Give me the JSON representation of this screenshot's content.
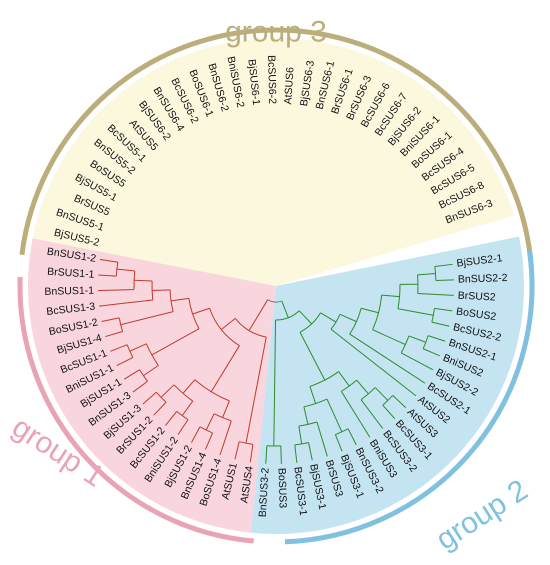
{
  "groups": [
    {
      "id": "g3",
      "label": "group 3",
      "color": "#BBAE7A",
      "sector_fill": "#FCF8DE",
      "branch_color": "#E0B43A"
    },
    {
      "id": "g1",
      "label": "group 1",
      "color": "#E8A4B4",
      "sector_fill": "#F9D5DD",
      "branch_color": "#C0392B"
    },
    {
      "id": "g2",
      "label": "group 2",
      "color": "#7FC1DE",
      "sector_fill": "#C5E4F2",
      "branch_color": "#2E8B2E"
    }
  ],
  "leaves": [
    {
      "label": "BjSUS2-1",
      "group": "g2"
    },
    {
      "label": "BnSUS2-2",
      "group": "g2"
    },
    {
      "label": "BrSUS2",
      "group": "g2"
    },
    {
      "label": "BoSUS2",
      "group": "g2"
    },
    {
      "label": "BcSUS2-2",
      "group": "g2"
    },
    {
      "label": "BnSUS2-1",
      "group": "g2"
    },
    {
      "label": "BniSUS2",
      "group": "g2"
    },
    {
      "label": "BjSUS2-2",
      "group": "g2"
    },
    {
      "label": "BcSUS2-1",
      "group": "g2"
    },
    {
      "label": "AtSUS2",
      "group": "g2"
    },
    {
      "label": "AtSUS3",
      "group": "g2"
    },
    {
      "label": "BcSUS3-1",
      "group": "g2"
    },
    {
      "label": "BcSUS3-2",
      "group": "g2"
    },
    {
      "label": "BniSUS3",
      "group": "g2"
    },
    {
      "label": "BnSUS3-2",
      "group": "g2"
    },
    {
      "label": "BjSUS3-1",
      "group": "g2"
    },
    {
      "label": "BrSUS3",
      "group": "g2"
    },
    {
      "label": "BjSUS3-1",
      "group": "g2"
    },
    {
      "label": "BcSUS3-1",
      "group": "g2"
    },
    {
      "label": "BoSUS3",
      "group": "g2"
    },
    {
      "label": "BnSUS3-2",
      "group": "g2"
    },
    {
      "label": "AtSUS4",
      "group": "g1"
    },
    {
      "label": "AtSUS1",
      "group": "g1"
    },
    {
      "label": "BoSUS1-4",
      "group": "g1"
    },
    {
      "label": "BnSUS1-4",
      "group": "g1"
    },
    {
      "label": "BjSUS1-2",
      "group": "g1"
    },
    {
      "label": "BniSUS1-2",
      "group": "g1"
    },
    {
      "label": "BcSUS1-2",
      "group": "g1"
    },
    {
      "label": "BrSUS1-2",
      "group": "g1"
    },
    {
      "label": "BjSUS1-3",
      "group": "g1"
    },
    {
      "label": "BnSUS1-3",
      "group": "g1"
    },
    {
      "label": "BjSUS1-1",
      "group": "g1"
    },
    {
      "label": "BniSUS1-1",
      "group": "g1"
    },
    {
      "label": "BcSUS1-1",
      "group": "g1"
    },
    {
      "label": "BjSUS1-4",
      "group": "g1"
    },
    {
      "label": "BoSUS1-2",
      "group": "g1"
    },
    {
      "label": "BcSUS1-3",
      "group": "g1"
    },
    {
      "label": "BnSUS1-1",
      "group": "g1"
    },
    {
      "label": "BrSUS1-1",
      "group": "g1"
    },
    {
      "label": "BnSUS1-2",
      "group": "g1"
    },
    {
      "label": "BjSUS5-2",
      "group": "g3"
    },
    {
      "label": "BnSUS5-1",
      "group": "g3"
    },
    {
      "label": "BrSUS5",
      "group": "g3"
    },
    {
      "label": "BjSUS5-1",
      "group": "g3"
    },
    {
      "label": "BoSUS5",
      "group": "g3"
    },
    {
      "label": "BnSUS5-2",
      "group": "g3"
    },
    {
      "label": "BcSUS5-1",
      "group": "g3"
    },
    {
      "label": "AtSUS5",
      "group": "g3"
    },
    {
      "label": "BjSUS6-2",
      "group": "g3"
    },
    {
      "label": "BnSUS6-4",
      "group": "g3"
    },
    {
      "label": "BcSUS6-2",
      "group": "g3"
    },
    {
      "label": "BoSUS6-1",
      "group": "g3"
    },
    {
      "label": "BnSUS6-2",
      "group": "g3"
    },
    {
      "label": "BniSUS6-2",
      "group": "g3"
    },
    {
      "label": "BjSUS6-1",
      "group": "g3"
    },
    {
      "label": "BcSUS6-2",
      "group": "g3"
    },
    {
      "label": "AtSUS6",
      "group": "g3"
    },
    {
      "label": "BjSUS6-3",
      "group": "g3"
    },
    {
      "label": "BnSUS6-1",
      "group": "g3"
    },
    {
      "label": "BrSUS6-1",
      "group": "g3"
    },
    {
      "label": "BrSUS6-3",
      "group": "g3"
    },
    {
      "label": "BcSUS6-6",
      "group": "g3"
    },
    {
      "label": "BcSUS6-7",
      "group": "g3"
    },
    {
      "label": "BjSUS6-2",
      "group": "g3"
    },
    {
      "label": "BniSUS6-1",
      "group": "g3"
    },
    {
      "label": "BoSUS6-1",
      "group": "g3"
    },
    {
      "label": "BcSUS6-4",
      "group": "g3"
    },
    {
      "label": "BcSUS6-5",
      "group": "g3"
    },
    {
      "label": "BcSUS6-8",
      "group": "g3"
    },
    {
      "label": "BnSUS6-3",
      "group": "g3"
    }
  ]
}
